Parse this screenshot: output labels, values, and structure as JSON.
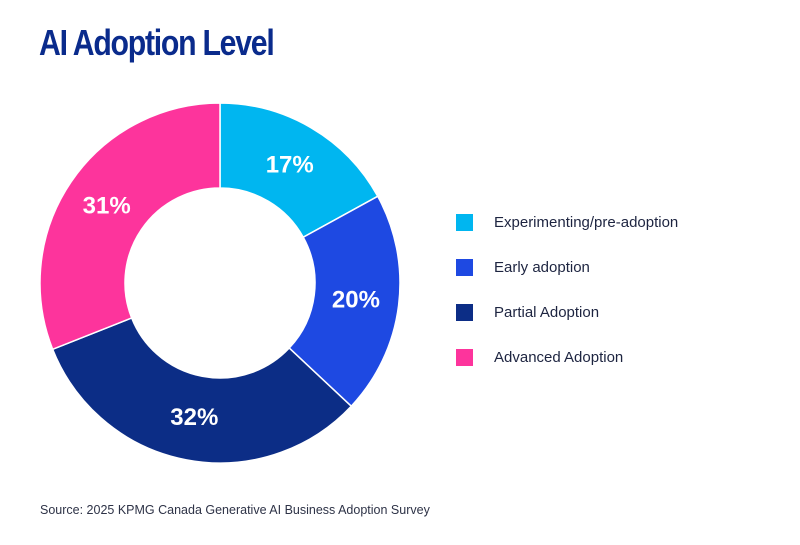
{
  "chart_data": {
    "type": "pie",
    "variant": "donut",
    "title": "AI Adoption Level",
    "categories": [
      "Experimenting/pre-adoption",
      "Early adoption",
      "Partial Adoption",
      "Advanced Adoption"
    ],
    "values": [
      17,
      20,
      32,
      31
    ],
    "value_labels": [
      "17%",
      "20%",
      "32%",
      "31%"
    ],
    "colors": [
      "#00b6f0",
      "#1e49e2",
      "#0c2d86",
      "#fd349c"
    ],
    "legend_position": "right",
    "source": "Source: 2025 KPMG Canada Generative AI Business Adoption Survey"
  }
}
